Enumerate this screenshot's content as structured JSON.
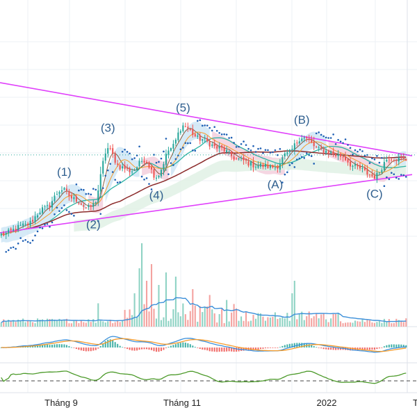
{
  "colors": {
    "up": "#26a69a",
    "down": "#ef5350",
    "ma_fast": "#8b5a3c",
    "ma_mid": "#2bb3a3",
    "ma_slow": "#8b2a2a",
    "ma_orange": "#f59b2b",
    "trend_line": "#e040fb",
    "psar": "#1e5fb4",
    "price_line": "#26a69a",
    "volume_up": "#8fd3c4",
    "volume_down": "#f4a3a0",
    "volume_ma": "#3b8fd9",
    "macd": "#3b8fd9",
    "signal": "#f59b2b",
    "rsi": "#4c9a2a",
    "cloud_up": "#c8e3f4",
    "cloud_down": "#f2c8d8",
    "wave_label": "#2f5f8f"
  },
  "wave_labels": [
    {
      "text": "(1)",
      "bar": 26
    },
    {
      "text": "(2)",
      "bar": 38
    },
    {
      "text": "(3)",
      "bar": 44
    },
    {
      "text": "(4)",
      "bar": 64
    },
    {
      "text": "(5)",
      "bar": 75
    },
    {
      "text": "(A)",
      "bar": 113
    },
    {
      "text": "(B)",
      "bar": 124
    },
    {
      "text": "(C)",
      "bar": 154
    }
  ],
  "x_axis_labels": [
    "Tháng 9",
    "Tháng 11",
    "2022",
    "T"
  ],
  "chart_data": {
    "type": "candlestick",
    "title": "",
    "xlabel": "",
    "ylabel": "",
    "grid": true,
    "x_ticks": [
      "Tháng 9",
      "Tháng 11",
      "2022"
    ],
    "ylim": [
      0,
      100
    ],
    "bars": 168,
    "price_anchors": [
      [
        0,
        12
      ],
      [
        10,
        17
      ],
      [
        18,
        26
      ],
      [
        25,
        36
      ],
      [
        30,
        31
      ],
      [
        36,
        26
      ],
      [
        38,
        28
      ],
      [
        44,
        58
      ],
      [
        49,
        48
      ],
      [
        54,
        46
      ],
      [
        59,
        52
      ],
      [
        64,
        43
      ],
      [
        70,
        58
      ],
      [
        75,
        70
      ],
      [
        82,
        63
      ],
      [
        90,
        58
      ],
      [
        98,
        52
      ],
      [
        105,
        49
      ],
      [
        113,
        48
      ],
      [
        118,
        55
      ],
      [
        124,
        64
      ],
      [
        132,
        57
      ],
      [
        140,
        54
      ],
      [
        146,
        48
      ],
      [
        154,
        43
      ],
      [
        160,
        53
      ],
      [
        166,
        52
      ]
    ],
    "current_price_level": 54.5,
    "trendlines": [
      {
        "name": "upper",
        "from": [
          0,
          93
        ],
        "to": [
          170,
          54
        ]
      },
      {
        "name": "lower",
        "from": [
          0,
          13
        ],
        "to": [
          170,
          44
        ]
      }
    ],
    "elliott_waves": [
      {
        "label": "(1)",
        "bar": 26
      },
      {
        "label": "(2)",
        "bar": 38
      },
      {
        "label": "(3)",
        "bar": 44
      },
      {
        "label": "(4)",
        "bar": 64
      },
      {
        "label": "(5)",
        "bar": 75
      },
      {
        "label": "(A)",
        "bar": 113
      },
      {
        "label": "(B)",
        "bar": 124
      },
      {
        "label": "(C)",
        "bar": 154
      }
    ],
    "volume": {
      "ylim": [
        0,
        100
      ],
      "spikes": [
        [
          40,
          28
        ],
        [
          55,
          40
        ],
        [
          57,
          70
        ],
        [
          58,
          100
        ],
        [
          60,
          55
        ],
        [
          62,
          75
        ],
        [
          65,
          50
        ],
        [
          68,
          65
        ],
        [
          72,
          60
        ],
        [
          79,
          45
        ],
        [
          86,
          38
        ],
        [
          93,
          32
        ],
        [
          120,
          40
        ],
        [
          121,
          55
        ],
        [
          137,
          15
        ]
      ]
    },
    "macd": {
      "ylim": [
        -1,
        1
      ]
    },
    "rsi": {
      "ylim": [
        0,
        100
      ],
      "reference_level": 30
    }
  }
}
